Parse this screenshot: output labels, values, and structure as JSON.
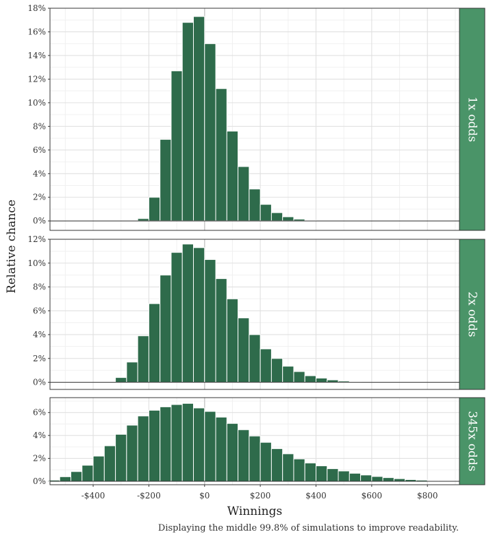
{
  "colors": {
    "bar_fill": "#2e6b4b",
    "bar_stroke": "#ffffff",
    "strip_fill": "#4a9468",
    "grid_major": "#e0e0e0",
    "grid_minor": "#f0f0f0",
    "zero_line": "#cccccc",
    "panel_border": "#333333"
  },
  "caption": "Displaying the middle 99.8% of simulations to improve readability.",
  "chart_data": {
    "type": "bar",
    "subtype": "faceted-histogram",
    "xlabel": "Winnings",
    "ylabel": "Relative chance",
    "x_ticks": [
      "-$400",
      "-$200",
      "$0",
      "$200",
      "$400",
      "$600",
      "$800"
    ],
    "x_tick_values": [
      -400,
      -200,
      0,
      200,
      400,
      600,
      800
    ],
    "xlim": [
      -555,
      915
    ],
    "bin_width": 40,
    "grid": true,
    "facets": [
      {
        "label": "1x odds",
        "ylim": [
          -0.8,
          18
        ],
        "y_ticks": [
          "0%",
          "2%",
          "4%",
          "6%",
          "8%",
          "10%",
          "12%",
          "14%",
          "16%",
          "18%"
        ],
        "y_tick_values": [
          0,
          2,
          4,
          6,
          8,
          10,
          12,
          14,
          16,
          18
        ],
        "bin_start": -240,
        "values": [
          0.2,
          2.0,
          6.9,
          12.7,
          16.8,
          17.3,
          15.0,
          11.2,
          7.6,
          4.6,
          2.7,
          1.4,
          0.7,
          0.35,
          0.15,
          0.05
        ]
      },
      {
        "label": "2x odds",
        "ylim": [
          -0.6,
          12
        ],
        "y_ticks": [
          "0%",
          "2%",
          "4%",
          "6%",
          "8%",
          "10%",
          "12%"
        ],
        "y_tick_values": [
          0,
          2,
          4,
          6,
          8,
          10,
          12
        ],
        "bin_start": -320,
        "values": [
          0.4,
          1.7,
          3.9,
          6.6,
          9.0,
          10.9,
          11.6,
          11.3,
          10.3,
          8.7,
          7.0,
          5.4,
          4.0,
          2.8,
          2.0,
          1.35,
          0.9,
          0.55,
          0.35,
          0.2,
          0.1,
          0.05
        ]
      },
      {
        "label": "345x odds",
        "ylim": [
          -0.3,
          7.3
        ],
        "y_ticks": [
          "0%",
          "2%",
          "4%",
          "6%"
        ],
        "y_tick_values": [
          0,
          2,
          4,
          6
        ],
        "bin_start": -560,
        "values": [
          0.1,
          0.4,
          0.85,
          1.4,
          2.2,
          3.1,
          4.1,
          4.9,
          5.7,
          6.2,
          6.5,
          6.7,
          6.8,
          6.4,
          6.1,
          5.6,
          5.05,
          4.5,
          3.95,
          3.4,
          2.85,
          2.4,
          1.95,
          1.6,
          1.35,
          1.1,
          0.9,
          0.7,
          0.55,
          0.42,
          0.32,
          0.23,
          0.15,
          0.1,
          0.06
        ]
      }
    ]
  }
}
